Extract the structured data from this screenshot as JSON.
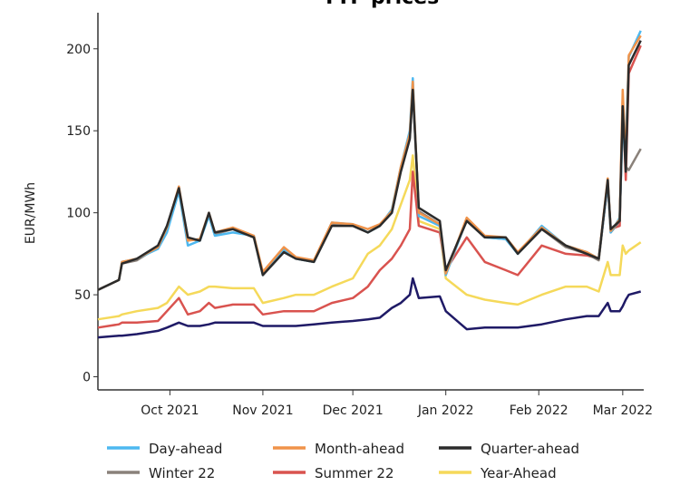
{
  "chart_data": {
    "type": "line",
    "title": "TTF prices",
    "ylabel": "EUR/MWh",
    "xlabel": "",
    "ylim": [
      -8,
      222
    ],
    "xlim": [
      "2021-09-07",
      "2022-03-08"
    ],
    "yticks": [
      0,
      50,
      100,
      150,
      200
    ],
    "xticks": [
      {
        "date": "2021-10-01",
        "label": "Oct 2021"
      },
      {
        "date": "2021-11-01",
        "label": "Nov 2021"
      },
      {
        "date": "2021-12-01",
        "label": "Dec 2021"
      },
      {
        "date": "2022-01-01",
        "label": "Jan 2022"
      },
      {
        "date": "2022-02-01",
        "label": "Feb 2022"
      },
      {
        "date": "2022-03-01",
        "label": "Mar 2022"
      }
    ],
    "grid": false,
    "legend_position": "bottom",
    "x": [
      "2021-09-07",
      "2021-09-14",
      "2021-09-15",
      "2021-09-20",
      "2021-09-27",
      "2021-09-30",
      "2021-10-04",
      "2021-10-07",
      "2021-10-11",
      "2021-10-14",
      "2021-10-16",
      "2021-10-22",
      "2021-10-29",
      "2021-11-01",
      "2021-11-08",
      "2021-11-12",
      "2021-11-18",
      "2021-11-24",
      "2021-12-01",
      "2021-12-06",
      "2021-12-10",
      "2021-12-14",
      "2021-12-17",
      "2021-12-20",
      "2021-12-21",
      "2021-12-23",
      "2021-12-30",
      "2022-01-01",
      "2022-01-08",
      "2022-01-14",
      "2022-01-21",
      "2022-01-25",
      "2022-02-02",
      "2022-02-10",
      "2022-02-17",
      "2022-02-21",
      "2022-02-24",
      "2022-02-25",
      "2022-02-28",
      "2022-03-01",
      "2022-03-02",
      "2022-03-03",
      "2022-03-07"
    ],
    "series": [
      {
        "name": "",
        "color": "#1f1a66",
        "legend": false,
        "values": [
          24,
          25,
          25,
          26,
          28,
          30,
          33,
          31,
          31,
          32,
          33,
          33,
          33,
          31,
          31,
          31,
          32,
          33,
          34,
          35,
          36,
          42,
          45,
          50,
          60,
          48,
          49,
          40,
          29,
          30,
          30,
          30,
          32,
          35,
          37,
          37,
          45,
          40,
          40,
          43,
          47,
          50,
          52
        ]
      },
      {
        "name": "Year-Ahead",
        "color": "#f5d95a",
        "values": [
          35,
          37,
          38,
          40,
          42,
          45,
          55,
          50,
          52,
          55,
          55,
          54,
          54,
          45,
          48,
          50,
          50,
          55,
          60,
          75,
          80,
          90,
          105,
          120,
          135,
          95,
          90,
          60,
          50,
          47,
          45,
          44,
          50,
          55,
          55,
          52,
          70,
          62,
          62,
          80,
          75,
          77,
          82
        ]
      },
      {
        "name": "Summer 22",
        "color": "#d9534f",
        "values": [
          30,
          32,
          33,
          33,
          34,
          40,
          48,
          38,
          40,
          45,
          42,
          44,
          44,
          38,
          40,
          40,
          40,
          45,
          48,
          55,
          65,
          72,
          80,
          90,
          125,
          92,
          88,
          65,
          85,
          70,
          65,
          62,
          80,
          75,
          74,
          72,
          118,
          90,
          92,
          170,
          120,
          185,
          202
        ]
      },
      {
        "name": "Winter 22",
        "color": "#8a817a",
        "values": [
          53,
          59,
          69,
          71,
          79,
          90,
          114,
          84,
          83,
          99,
          87,
          90,
          85,
          63,
          77,
          72,
          70,
          93,
          92,
          88,
          92,
          100,
          126,
          146,
          176,
          101,
          93,
          63,
          96,
          85,
          84,
          75,
          90,
          79,
          75,
          71,
          119,
          88,
          95,
          160,
          128,
          126,
          139
        ]
      },
      {
        "name": "Day-ahead",
        "color": "#4db8f0",
        "values": [
          53,
          59,
          70,
          72,
          78,
          88,
          113,
          80,
          83,
          98,
          86,
          88,
          86,
          62,
          78,
          72,
          70,
          94,
          93,
          88,
          92,
          102,
          128,
          150,
          182,
          98,
          92,
          62,
          96,
          85,
          84,
          75,
          92,
          80,
          76,
          72,
          118,
          88,
          97,
          155,
          140,
          195,
          211
        ]
      },
      {
        "name": "Month-ahead",
        "color": "#f0934a",
        "values": [
          53,
          59,
          70,
          72,
          79,
          91,
          116,
          83,
          84,
          100,
          88,
          91,
          86,
          64,
          79,
          73,
          71,
          94,
          93,
          90,
          93,
          101,
          128,
          148,
          180,
          100,
          93,
          63,
          97,
          86,
          85,
          76,
          91,
          80,
          76,
          72,
          121,
          89,
          96,
          175,
          130,
          196,
          208
        ]
      },
      {
        "name": "Quarter-ahead",
        "color": "#2b2b2b",
        "values": [
          53,
          59,
          69,
          72,
          80,
          92,
          115,
          85,
          83,
          100,
          88,
          90,
          85,
          62,
          76,
          72,
          70,
          92,
          92,
          88,
          92,
          100,
          125,
          145,
          175,
          103,
          95,
          65,
          95,
          85,
          85,
          75,
          90,
          80,
          75,
          72,
          120,
          90,
          95,
          165,
          125,
          190,
          205
        ]
      }
    ],
    "legend": [
      "Day-ahead",
      "Month-ahead",
      "Quarter-ahead",
      "Winter 22",
      "Summer 22",
      "Year-Ahead"
    ]
  }
}
